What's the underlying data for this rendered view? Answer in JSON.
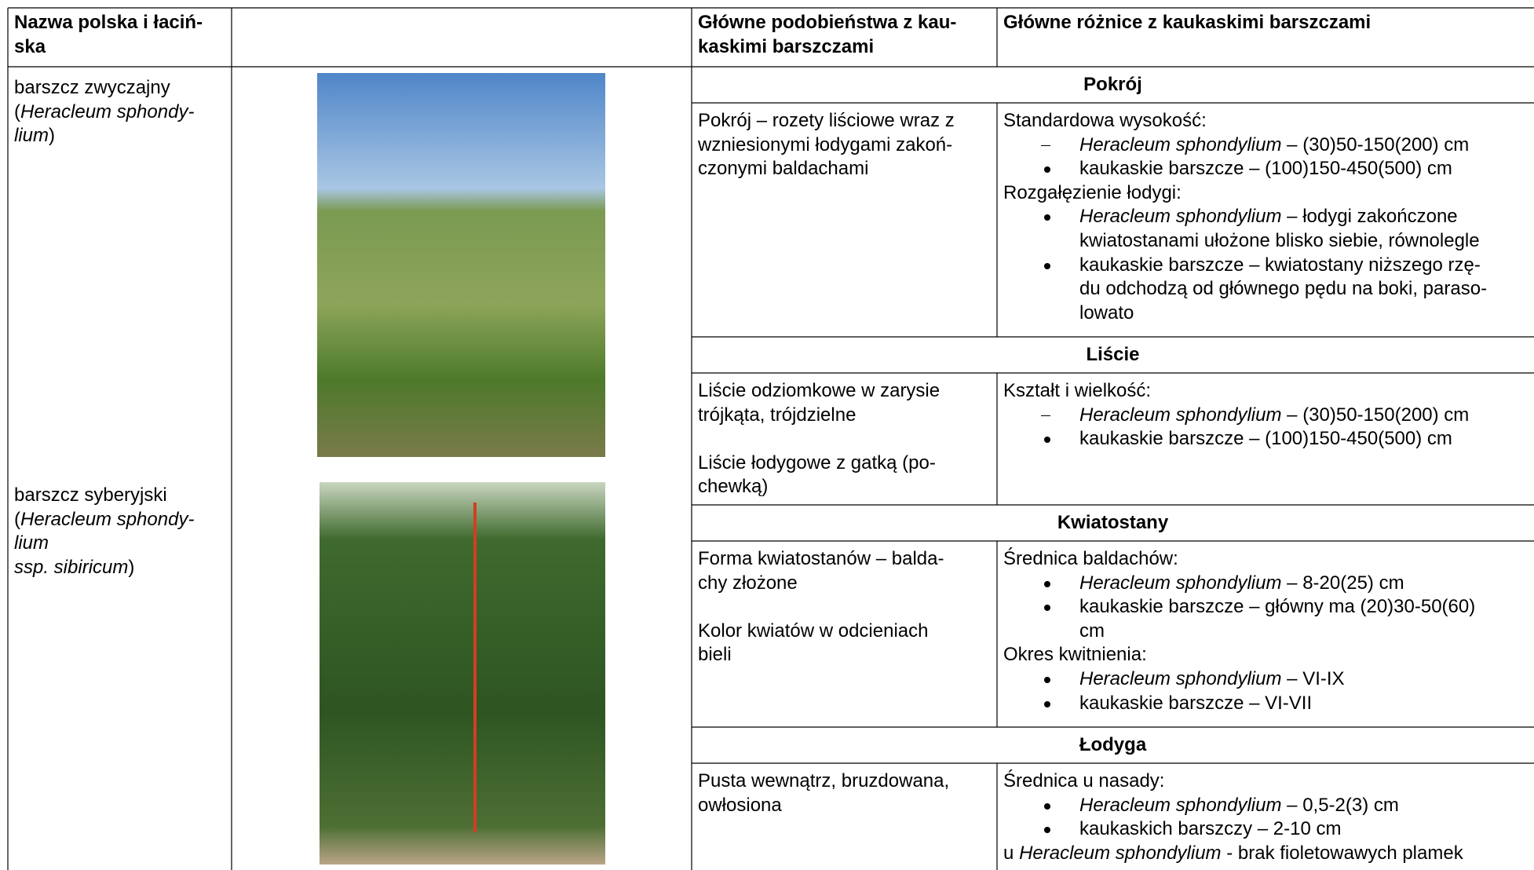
{
  "table": {
    "header": [
      [
        "Nazwa polska i łaciń-",
        "ska"
      ],
      [],
      [
        "Główne podobieństwa z kau-",
        "kaskimi barszczami"
      ],
      [
        "Główne różnice z kaukaskimi barszczami"
      ]
    ],
    "species": [
      [
        [
          {
            "text": "barszcz zwyczajny"
          }
        ],
        [
          {
            "text": "("
          },
          {
            "text": "Heracleum sphondy-",
            "italic": true
          }
        ],
        [
          {
            "text": "lium",
            "italic": true
          },
          {
            "text": ")"
          }
        ]
      ],
      [
        [
          {
            "text": "barszcz syberyjski"
          }
        ],
        [
          {
            "text": "("
          },
          {
            "text": "Heracleum sphondy-",
            "italic": true
          }
        ],
        [
          {
            "text": "lium",
            "italic": true
          }
        ],
        [
          {
            "text": "ssp. sibiricum",
            "italic": true
          },
          {
            "text": ")"
          }
        ]
      ]
    ],
    "sections": [
      {
        "title": "Pokrój",
        "similarities": [
          [
            "Pokrój – rozety liściowe wraz z",
            "wzniesionymi łodygami zakoń-",
            "czonymi baldachami"
          ]
        ],
        "differences": [
          {
            "segments": [
              {
                "text": "Standardowa wysokość:"
              }
            ]
          },
          {
            "marker": "dash",
            "segments": [
              {
                "text": "Heracleum sphondylium",
                "italic": true
              },
              {
                "text": "– (30)50-150(200) cm"
              }
            ]
          },
          {
            "marker": "bullet",
            "segments": [
              {
                "text": "kaukaskie barszcze – (100)150-450(500) cm"
              }
            ]
          },
          {
            "segments": [
              {
                "text": "Rozgałęzienie łodygi:"
              }
            ]
          },
          {
            "marker": "bullet",
            "segments": [
              {
                "text": "Heracleum sphondylium",
                "italic": true
              },
              {
                "text": "– łodygi zakończone"
              }
            ]
          },
          {
            "marker": "indent",
            "segments": [
              {
                "text": "kwiatostanami ułożone blisko siebie, równolegle"
              }
            ]
          },
          {
            "marker": "bullet",
            "segments": [
              {
                "text": "kaukaskie barszcze – kwiatostany niższego rzę-"
              }
            ]
          },
          {
            "marker": "indent",
            "segments": [
              {
                "text": "du odchodzą od głównego pędu na boki, paraso-"
              }
            ]
          },
          {
            "marker": "indent",
            "segments": [
              {
                "text": "lowato"
              }
            ]
          }
        ]
      },
      {
        "title": "Liście",
        "similarities": [
          [
            "Liście odziomkowe w zarysie",
            "trójkąta, trójdzielne"
          ],
          [
            "Liście łodygowe z gatką (po-",
            "chewką)"
          ]
        ],
        "differences": [
          {
            "segments": [
              {
                "text": "Kształt i wielkość:"
              }
            ]
          },
          {
            "marker": "dash",
            "segments": [
              {
                "text": "Heracleum sphondylium",
                "italic": true
              },
              {
                "text": "– (30)50-150(200) cm"
              }
            ]
          },
          {
            "marker": "bullet",
            "segments": [
              {
                "text": "kaukaskie barszcze – (100)150-450(500) cm"
              }
            ]
          }
        ]
      },
      {
        "title": "Kwiatostany",
        "similarities": [
          [
            "Forma kwiatostanów – balda-",
            "chy złożone"
          ],
          [
            "Kolor kwiatów w odcieniach",
            "bieli"
          ]
        ],
        "differences": [
          {
            "segments": [
              {
                "text": "Średnica baldachów:"
              }
            ]
          },
          {
            "marker": "bullet",
            "segments": [
              {
                "text": "Heracleum sphondylium",
                "italic": true
              },
              {
                "text": "– 8-20(25) cm"
              }
            ]
          },
          {
            "marker": "bullet",
            "segments": [
              {
                "text": "kaukaskie barszcze – główny ma (20)30-50(60)"
              }
            ]
          },
          {
            "marker": "indent",
            "segments": [
              {
                "text": "cm"
              }
            ]
          },
          {
            "segments": [
              {
                "text": "Okres kwitnienia:"
              }
            ]
          },
          {
            "marker": "bullet",
            "segments": [
              {
                "text": "Heracleum sphondylium",
                "italic": true
              },
              {
                "text": "– VI-IX"
              }
            ]
          },
          {
            "marker": "bullet",
            "segments": [
              {
                "text": "kaukaskie barszcze – VI-VII"
              }
            ]
          }
        ]
      },
      {
        "title": "Łodyga",
        "similarities": [
          [
            "Pusta wewnątrz, bruzdowana,",
            "owłosiona"
          ]
        ],
        "differences": [
          {
            "segments": [
              {
                "text": "Średnica u nasady:"
              }
            ]
          },
          {
            "marker": "bullet",
            "segments": [
              {
                "text": "Heracleum sphondylium",
                "italic": true
              },
              {
                "text": "– 0,5-2(3) cm"
              }
            ]
          },
          {
            "marker": "bullet",
            "segments": [
              {
                "text": "kaukaskich barszczy – 2-10 cm"
              }
            ]
          },
          {
            "segments": [
              {
                "text": "u"
              },
              {
                "text": "Heracleum sphondylium",
                "italic": true
              },
              {
                "text": "- brak fioletowawych plamek"
              }
            ]
          }
        ]
      }
    ]
  }
}
